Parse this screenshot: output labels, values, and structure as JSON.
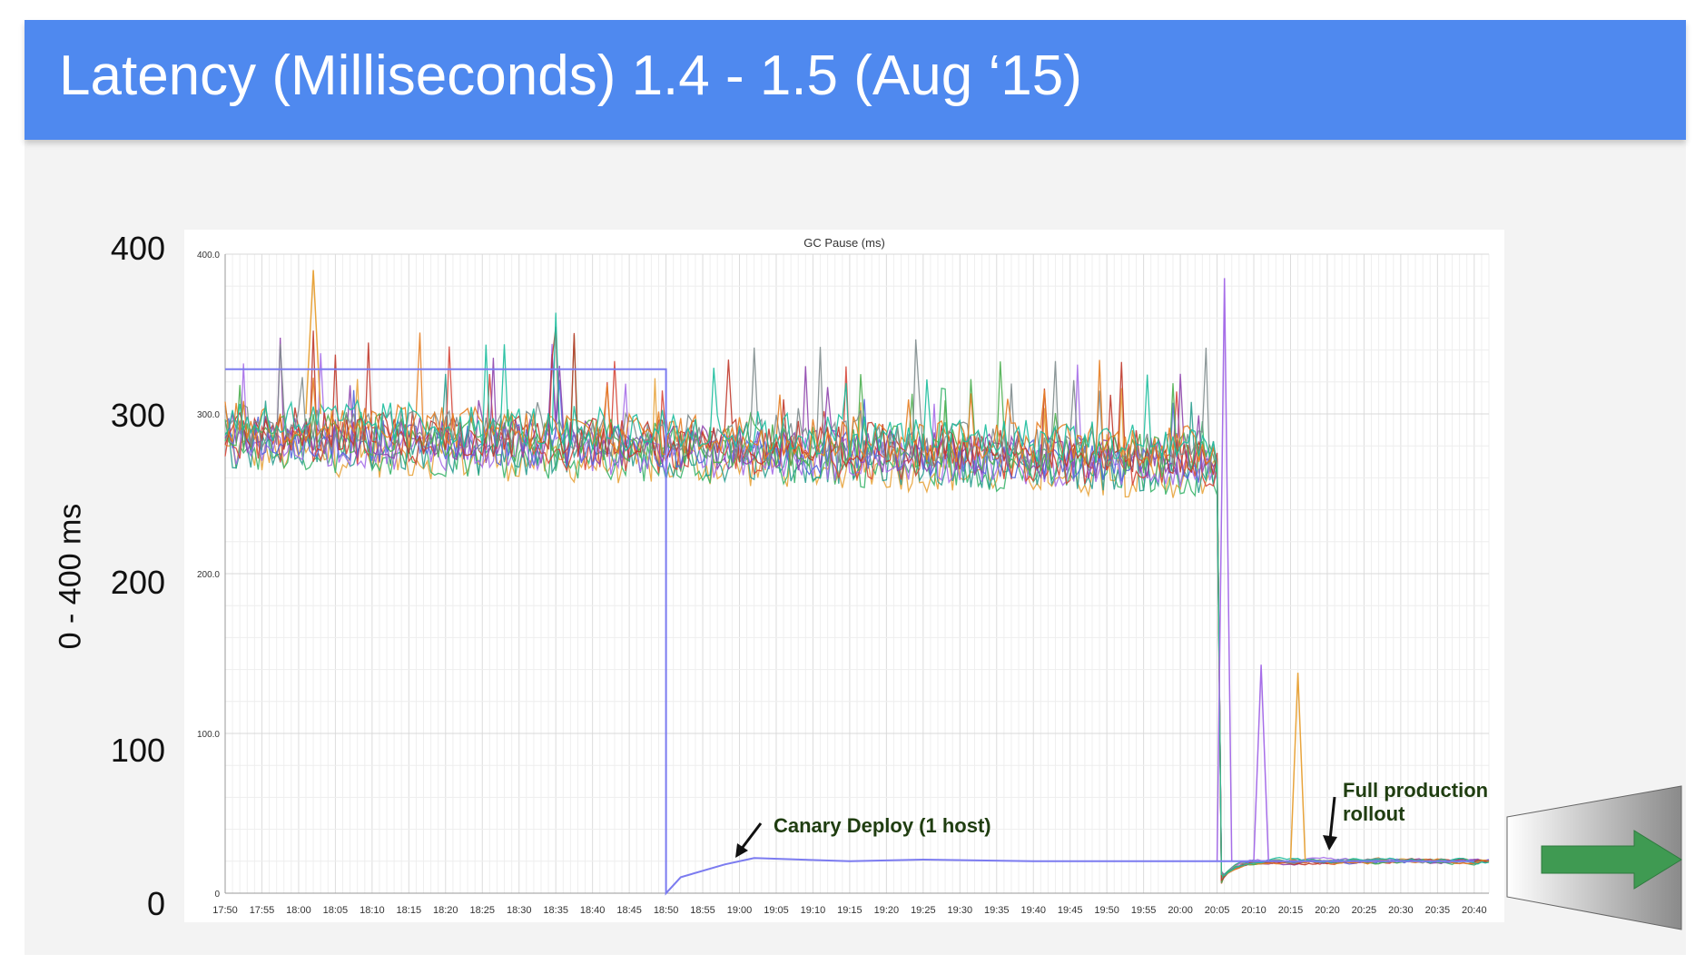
{
  "title": "Latency (Milliseconds) 1.4 - 1.5 (Aug ‘15)",
  "y_axis_title": "0 - 400 ms",
  "slide_y_ticks": [
    "400",
    "300",
    "200",
    "100",
    "0"
  ],
  "colors": {
    "title_bar": "#4f89ef",
    "arrow": "#3f9a52",
    "annotation_text": "#1f3d10"
  },
  "chart_data": {
    "type": "line",
    "title": "GC Pause (ms)",
    "ylim": [
      0,
      400
    ],
    "y_ticks": [
      "400.0",
      "300.0",
      "200.0",
      "100.0",
      "0"
    ],
    "x_tick_labels": [
      "17:50",
      "17:55",
      "18:00",
      "18:05",
      "18:10",
      "18:15",
      "18:20",
      "18:25",
      "18:30",
      "18:35",
      "18:40",
      "18:45",
      "18:50",
      "18:55",
      "19:00",
      "19:05",
      "19:10",
      "19:15",
      "19:20",
      "19:25",
      "19:30",
      "19:35",
      "19:40",
      "19:45",
      "19:50",
      "19:55",
      "20:00",
      "20:05",
      "20:10",
      "20:15",
      "20:20",
      "20:25",
      "20:30",
      "20:35",
      "20:40"
    ],
    "grid": true,
    "series_colors": [
      "#e8a43c",
      "#3bb56b",
      "#2a9d8f",
      "#a66ee8",
      "#d6473a",
      "#5566dd",
      "#8e44ad",
      "#4caf50",
      "#c0392b",
      "#7f8c8d",
      "#e67e22",
      "#1abc9c"
    ],
    "canary_series": {
      "color": "#7b7bf0",
      "points": [
        [
          "17:50",
          328
        ],
        [
          "18:50",
          328
        ],
        [
          "18:50",
          0
        ],
        [
          "18:52",
          10
        ],
        [
          "18:58",
          18
        ],
        [
          "19:02",
          22
        ],
        [
          "19:15",
          20
        ],
        [
          "19:25",
          21
        ],
        [
          "19:40",
          20
        ],
        [
          "20:05",
          20
        ],
        [
          "20:20",
          20
        ],
        [
          "20:40",
          20
        ]
      ]
    },
    "fleet_series_summary": {
      "before_rollout_range_ms": [
        265,
        310
      ],
      "rollout_time": "20:05",
      "after_rollout_value_ms": 20
    },
    "spikes": [
      {
        "time": "18:02",
        "value": 390,
        "color": "#e8a43c"
      },
      {
        "time": "20:06",
        "value": 385,
        "color": "#a66ee8"
      },
      {
        "time": "20:11",
        "value": 143,
        "color": "#a66ee8"
      },
      {
        "time": "20:16",
        "value": 138,
        "color": "#e8a43c"
      }
    ],
    "annotations": [
      {
        "text": "Canary Deploy (1 host)",
        "time": "19:00"
      },
      {
        "text_lines": [
          "Full production",
          "rollout"
        ],
        "time": "20:20"
      }
    ]
  }
}
